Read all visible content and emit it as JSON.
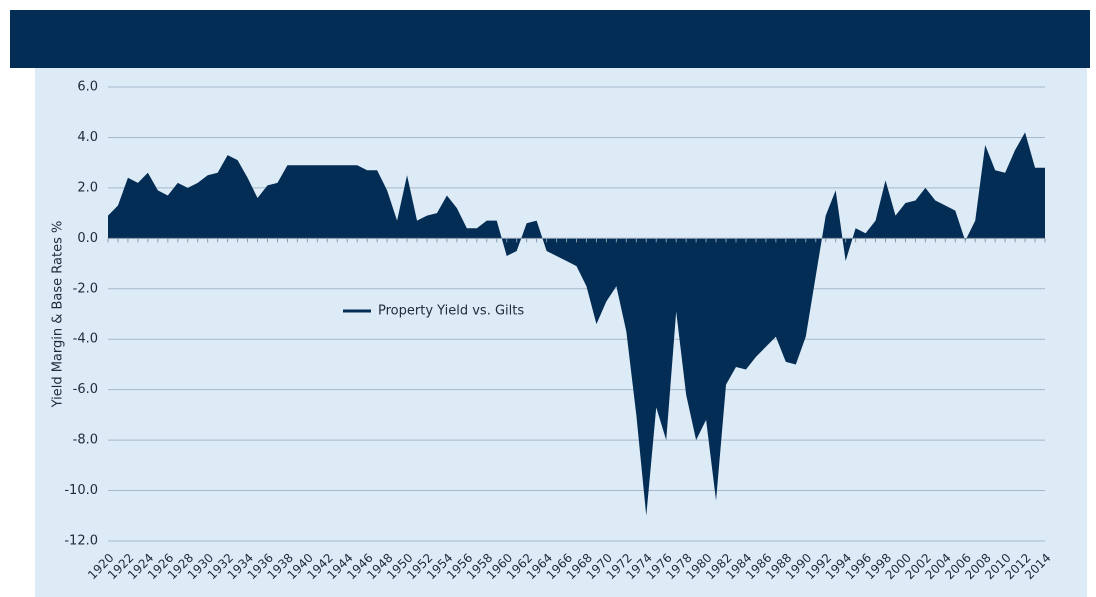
{
  "chart_data": {
    "type": "area",
    "y_label": "Yield Margin & Base Rates %",
    "categories": [
      1920,
      null,
      1922,
      null,
      1924,
      null,
      1926,
      null,
      1928,
      null,
      1930,
      null,
      1932,
      null,
      1934,
      null,
      1936,
      null,
      1938,
      null,
      1940,
      null,
      1942,
      null,
      1944,
      null,
      1946,
      null,
      1948,
      null,
      1950,
      null,
      1952,
      null,
      1954,
      null,
      1956,
      null,
      1958,
      null,
      1960,
      null,
      1962,
      null,
      1964,
      null,
      1966,
      null,
      1968,
      null,
      1970,
      null,
      1972,
      null,
      1974,
      null,
      1976,
      null,
      1978,
      null,
      1980,
      null,
      1982,
      null,
      1984,
      null,
      1986,
      null,
      1988,
      null,
      1990,
      null,
      1992,
      null,
      1994,
      null,
      1996,
      null,
      1998,
      null,
      2000,
      null,
      2002,
      null,
      2004,
      null,
      2006,
      null,
      2008,
      null,
      2010,
      null,
      2012,
      null,
      2014
    ],
    "series": [
      {
        "name": "Property Yield vs. Gilts",
        "color": "#032d55",
        "values": [
          0.9,
          1.3,
          2.4,
          2.2,
          2.6,
          1.9,
          1.7,
          2.2,
          2.0,
          2.2,
          2.5,
          2.6,
          3.3,
          3.1,
          2.4,
          1.6,
          2.1,
          2.2,
          2.9,
          2.9,
          2.9,
          2.9,
          2.9,
          2.9,
          2.9,
          2.9,
          2.7,
          2.7,
          1.9,
          0.7,
          2.5,
          0.7,
          0.9,
          1.0,
          1.7,
          1.2,
          0.4,
          0.4,
          0.7,
          0.7,
          -0.7,
          -0.5,
          0.6,
          0.7,
          -0.5,
          -0.7,
          -0.9,
          -1.1,
          -1.9,
          -3.4,
          -2.5,
          -1.9,
          -3.7,
          -7.0,
          -11.0,
          -6.7,
          -8.0,
          -2.9,
          -6.2,
          -8.0,
          -7.2,
          -10.4,
          -5.8,
          -5.1,
          -5.2,
          -4.7,
          -4.3,
          -3.9,
          -4.9,
          -5.0,
          -3.9,
          -1.5,
          0.9,
          1.9,
          -0.9,
          0.4,
          0.2,
          0.7,
          2.3,
          0.9,
          1.4,
          1.5,
          2.0,
          1.5,
          1.3,
          1.1,
          -0.1,
          0.7,
          3.7,
          2.7,
          2.6,
          3.5,
          4.2,
          2.8,
          2.8
        ]
      }
    ],
    "ylim": [
      -12,
      6
    ],
    "yticks": [
      {
        "value": -12,
        "label": "-12.0"
      },
      {
        "value": -10,
        "label": "-10.0"
      },
      {
        "value": -8,
        "label": "-8.0"
      },
      {
        "value": -6,
        "label": "-6.0"
      },
      {
        "value": -4,
        "label": "-4.0"
      },
      {
        "value": -2,
        "label": "-2.0"
      },
      {
        "value": 0,
        "label": "0.0"
      },
      {
        "value": 2,
        "label": "2.0"
      },
      {
        "value": 4,
        "label": "4.0"
      },
      {
        "value": 6,
        "label": "6.0"
      }
    ],
    "grid": true,
    "legend": "center"
  }
}
